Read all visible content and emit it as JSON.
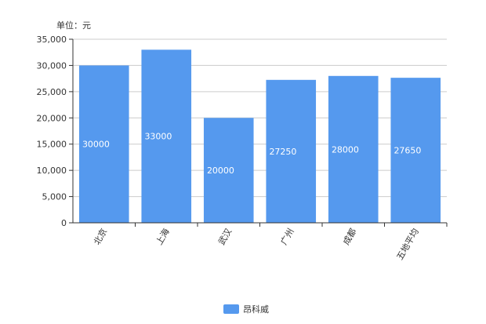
{
  "chart_data": {
    "type": "bar",
    "unit_label": "单位：元",
    "categories": [
      "北京",
      "上海",
      "武汉",
      "广州",
      "成都",
      "五地平均"
    ],
    "series": [
      {
        "name": "昂科威",
        "values": [
          30000,
          33000,
          20000,
          27250,
          28000,
          27650
        ],
        "color": "#5599ee"
      }
    ],
    "ylim": [
      0,
      35000
    ],
    "y_ticks": [
      "0",
      "5,000",
      "10,000",
      "15,000",
      "20,000",
      "25,000",
      "30,000",
      "35,000"
    ],
    "data_labels": [
      "30000",
      "33000",
      "20000",
      "27250",
      "28000",
      "27650"
    ],
    "grid": true,
    "legend": "bottom-center"
  }
}
